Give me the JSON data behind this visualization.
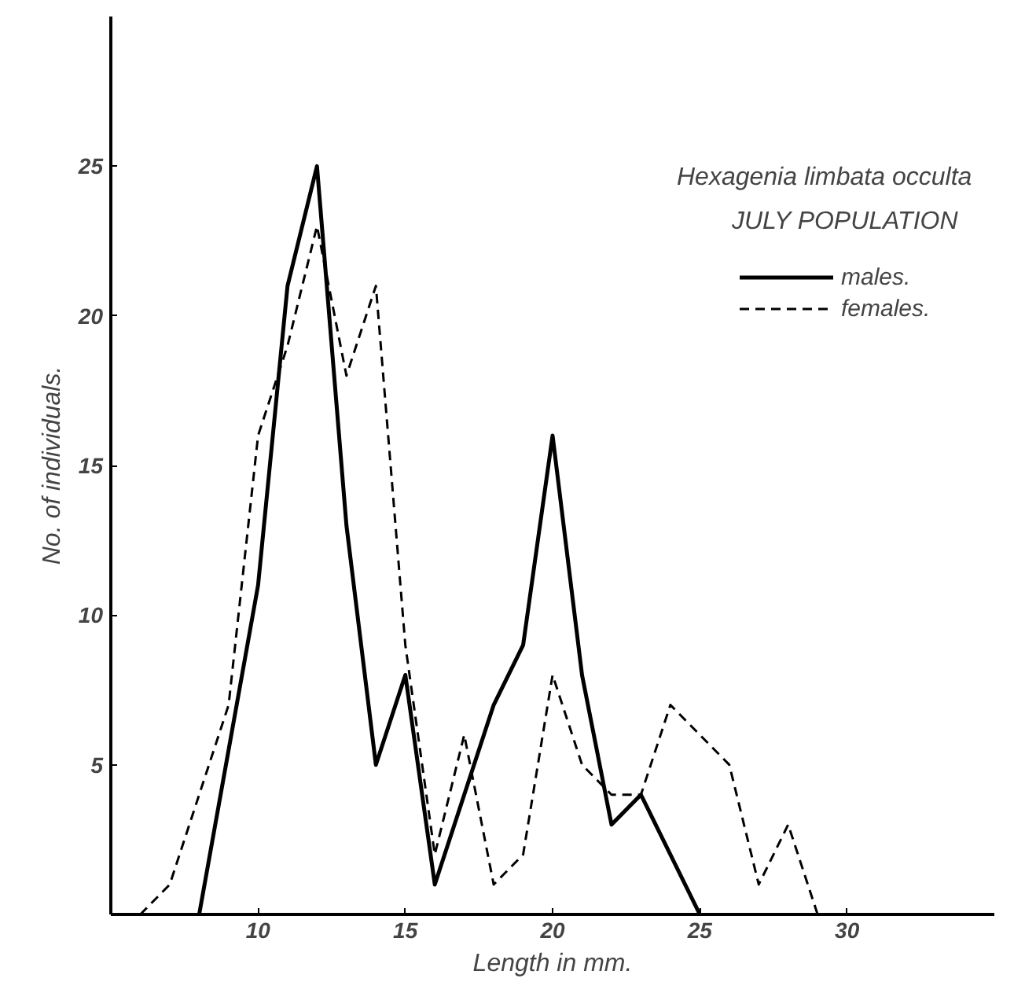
{
  "chart_data": {
    "type": "line",
    "title": "Hexagenia limbata occulta",
    "subtitle": "JULY POPULATION",
    "xlabel": "Length in mm.",
    "ylabel": "No. of individuals.",
    "series": [
      {
        "name": "males.",
        "color": "#000000",
        "line_style": "solid",
        "x": [
          8,
          10,
          11,
          12,
          13,
          14,
          15,
          16,
          18,
          19,
          20,
          21,
          22,
          23,
          25
        ],
        "values": [
          0,
          11,
          21,
          25,
          13,
          5,
          8,
          1,
          7,
          9,
          16,
          8,
          3,
          4,
          0
        ]
      },
      {
        "name": "females.",
        "color": "#000000",
        "line_style": "dashed",
        "x": [
          6,
          7,
          8,
          9,
          10,
          11,
          12,
          13,
          14,
          15,
          16,
          17,
          18,
          19,
          20,
          21,
          22,
          23,
          24,
          25,
          26,
          27,
          28,
          29
        ],
        "values": [
          0,
          1,
          4,
          7,
          16,
          19,
          23,
          18,
          21,
          9,
          2,
          6,
          1,
          2,
          8,
          5,
          4,
          4,
          7,
          6,
          5,
          1,
          3,
          0
        ]
      }
    ],
    "xlim": [
      5,
      35
    ],
    "ylim": [
      0,
      30
    ],
    "xticks": [
      10,
      15,
      20,
      25,
      30
    ],
    "yticks": [
      5,
      10,
      15,
      20,
      25
    ],
    "grid": false,
    "legend": "top right",
    "marker": "none"
  }
}
